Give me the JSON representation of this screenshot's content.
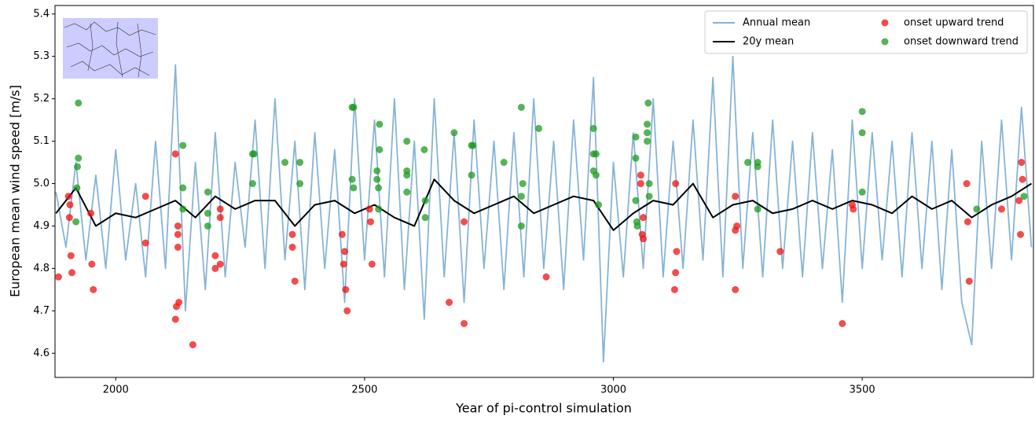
{
  "chart_data": {
    "type": "line",
    "xlabel": "Year of pi-control simulation",
    "ylabel": "European mean wind speed [m/s]",
    "xlim": [
      1878,
      3844
    ],
    "ylim": [
      4.543,
      5.42
    ],
    "xticks": [
      2000,
      2500,
      3000,
      3500
    ],
    "yticks": [
      4.6,
      4.7,
      4.8,
      4.9,
      {
        "value": 5,
        "label": "5.0"
      },
      5.1,
      5.2,
      5.3,
      5.4
    ],
    "legend": "upper right",
    "series": [
      {
        "name": "Annual mean",
        "type": "line",
        "color": "#86b4d6",
        "x": [
          1880,
          1900,
          1920,
          1940,
          1960,
          1980,
          2000,
          2020,
          2040,
          2060,
          2080,
          2100,
          2120,
          2140,
          2160,
          2180,
          2200,
          2220,
          2240,
          2260,
          2280,
          2300,
          2320,
          2340,
          2360,
          2380,
          2400,
          2420,
          2440,
          2460,
          2480,
          2500,
          2520,
          2540,
          2560,
          2580,
          2600,
          2620,
          2640,
          2660,
          2680,
          2700,
          2720,
          2740,
          2760,
          2780,
          2800,
          2820,
          2840,
          2860,
          2880,
          2900,
          2920,
          2940,
          2960,
          2980,
          3000,
          3020,
          3040,
          3060,
          3080,
          3100,
          3120,
          3140,
          3160,
          3180,
          3200,
          3220,
          3240,
          3260,
          3280,
          3300,
          3320,
          3340,
          3360,
          3380,
          3400,
          3420,
          3440,
          3460,
          3480,
          3500,
          3520,
          3540,
          3560,
          3580,
          3600,
          3620,
          3640,
          3660,
          3680,
          3700,
          3720,
          3740,
          3760,
          3780,
          3800,
          3820,
          3840
        ],
        "values": [
          4.98,
          4.85,
          5.05,
          4.82,
          5.02,
          4.8,
          5.08,
          4.82,
          5.0,
          4.78,
          5.1,
          4.8,
          5.28,
          4.7,
          5.05,
          4.75,
          5.12,
          4.78,
          5.05,
          4.85,
          5.15,
          4.8,
          5.2,
          4.82,
          5.1,
          4.75,
          5.12,
          4.8,
          5.08,
          4.72,
          5.2,
          4.82,
          5.15,
          4.78,
          5.2,
          4.75,
          5.1,
          4.68,
          5.2,
          4.78,
          5.12,
          4.72,
          5.15,
          4.8,
          5.1,
          4.75,
          5.12,
          4.78,
          5.2,
          4.8,
          5.1,
          4.75,
          5.15,
          4.82,
          5.25,
          4.58,
          5.05,
          4.78,
          5.12,
          4.8,
          5.2,
          4.78,
          5.1,
          4.8,
          5.15,
          4.82,
          5.25,
          4.78,
          5.3,
          4.8,
          5.12,
          4.78,
          5.15,
          4.8,
          5.1,
          4.78,
          5.12,
          4.8,
          5.08,
          4.72,
          5.15,
          4.8,
          5.12,
          4.82,
          5.1,
          4.78,
          5.12,
          4.8,
          5.1,
          4.75,
          5.08,
          4.72,
          4.62,
          5.1,
          4.8,
          5.15,
          4.82,
          5.18,
          4.85
        ]
      },
      {
        "name": "20y mean",
        "type": "line",
        "color": "#000000",
        "x": [
          1880,
          1920,
          1960,
          2000,
          2040,
          2080,
          2120,
          2160,
          2200,
          2240,
          2280,
          2320,
          2360,
          2400,
          2440,
          2480,
          2520,
          2560,
          2600,
          2640,
          2680,
          2720,
          2760,
          2800,
          2840,
          2880,
          2920,
          2960,
          3000,
          3040,
          3080,
          3120,
          3160,
          3200,
          3240,
          3280,
          3320,
          3360,
          3400,
          3440,
          3480,
          3520,
          3560,
          3600,
          3640,
          3680,
          3720,
          3760,
          3800,
          3840
        ],
        "values": [
          4.93,
          4.99,
          4.9,
          4.93,
          4.92,
          4.94,
          4.96,
          4.92,
          4.97,
          4.94,
          4.96,
          4.96,
          4.9,
          4.95,
          4.96,
          4.93,
          4.95,
          4.92,
          4.9,
          5.01,
          4.96,
          4.93,
          4.95,
          4.97,
          4.93,
          4.95,
          4.97,
          4.96,
          4.89,
          4.93,
          4.96,
          4.95,
          5.0,
          4.92,
          4.95,
          4.96,
          4.93,
          4.94,
          4.96,
          4.94,
          4.96,
          4.95,
          4.93,
          4.97,
          4.94,
          4.96,
          4.92,
          4.95,
          4.97,
          5.0
        ]
      },
      {
        "name": "onset upward trend",
        "type": "scatter",
        "color": "#ee1111",
        "x": [
          1885,
          1905,
          1907,
          1908,
          1910,
          1912,
          1950,
          1952,
          1955,
          2060,
          2060,
          2120,
          2120,
          2122,
          2125,
          2125,
          2125,
          2127,
          2155,
          2200,
          2200,
          2210,
          2210,
          2210,
          2355,
          2355,
          2360,
          2455,
          2458,
          2460,
          2462,
          2465,
          2510,
          2512,
          2515,
          2670,
          2700,
          2700,
          2865,
          3055,
          3055,
          3060,
          3058,
          3060,
          3125,
          3127,
          3125,
          3123,
          3245,
          3248,
          3245,
          3245,
          3335,
          3460,
          3480,
          3482,
          3710,
          3712,
          3715,
          3780,
          3815,
          3818,
          3820,
          3822
        ],
        "values": [
          4.78,
          4.97,
          4.92,
          4.95,
          4.83,
          4.79,
          4.93,
          4.81,
          4.75,
          4.86,
          4.97,
          5.07,
          4.68,
          4.71,
          4.9,
          4.88,
          4.85,
          4.72,
          4.62,
          4.83,
          4.8,
          4.94,
          4.92,
          4.81,
          4.88,
          4.85,
          4.77,
          4.88,
          4.81,
          4.84,
          4.75,
          4.7,
          4.94,
          4.91,
          4.81,
          4.72,
          4.91,
          4.67,
          4.78,
          5.02,
          5.0,
          4.92,
          4.88,
          4.87,
          5.0,
          4.84,
          4.79,
          4.75,
          4.97,
          4.9,
          4.89,
          4.75,
          4.84,
          4.67,
          4.95,
          4.94,
          5.0,
          4.91,
          4.77,
          4.94,
          4.96,
          4.88,
          5.05,
          5.01
        ]
      },
      {
        "name": "onset downward trend",
        "type": "scatter",
        "color": "#1f9a1f",
        "x": [
          1925,
          1925,
          1923,
          1922,
          1920,
          2135,
          2135,
          2135,
          2185,
          2185,
          2185,
          2275,
          2278,
          2275,
          2340,
          2370,
          2370,
          2475,
          2478,
          2475,
          2478,
          2525,
          2525,
          2528,
          2528,
          2530,
          2530,
          2585,
          2585,
          2585,
          2585,
          2620,
          2622,
          2622,
          2680,
          2715,
          2718,
          2715,
          2780,
          2815,
          2818,
          2815,
          2815,
          2850,
          2960,
          2960,
          2965,
          2960,
          2965,
          2970,
          3045,
          3045,
          3045,
          3047,
          3048,
          3070,
          3068,
          3068,
          3068,
          3072,
          3072,
          3270,
          3290,
          3290,
          3290,
          3500,
          3500,
          3500,
          3730,
          3825
        ],
        "values": [
          5.19,
          5.06,
          5.04,
          4.99,
          4.91,
          5.09,
          4.99,
          4.94,
          4.98,
          4.93,
          4.9,
          5.07,
          5.07,
          5.0,
          5.05,
          5.05,
          5.0,
          5.18,
          5.18,
          5.01,
          4.99,
          5.03,
          5.01,
          4.99,
          4.94,
          5.14,
          5.08,
          5.1,
          5.03,
          5.02,
          4.98,
          5.08,
          4.96,
          4.92,
          5.12,
          5.09,
          5.09,
          5.02,
          5.05,
          5.18,
          5.0,
          4.97,
          4.9,
          5.13,
          5.13,
          5.07,
          5.07,
          5.03,
          5.02,
          4.95,
          5.11,
          5.06,
          4.96,
          4.91,
          4.9,
          5.19,
          5.14,
          5.12,
          5.1,
          5.0,
          4.97,
          5.05,
          5.05,
          5.04,
          4.94,
          5.17,
          5.12,
          4.98,
          4.94,
          4.97
        ]
      }
    ]
  }
}
